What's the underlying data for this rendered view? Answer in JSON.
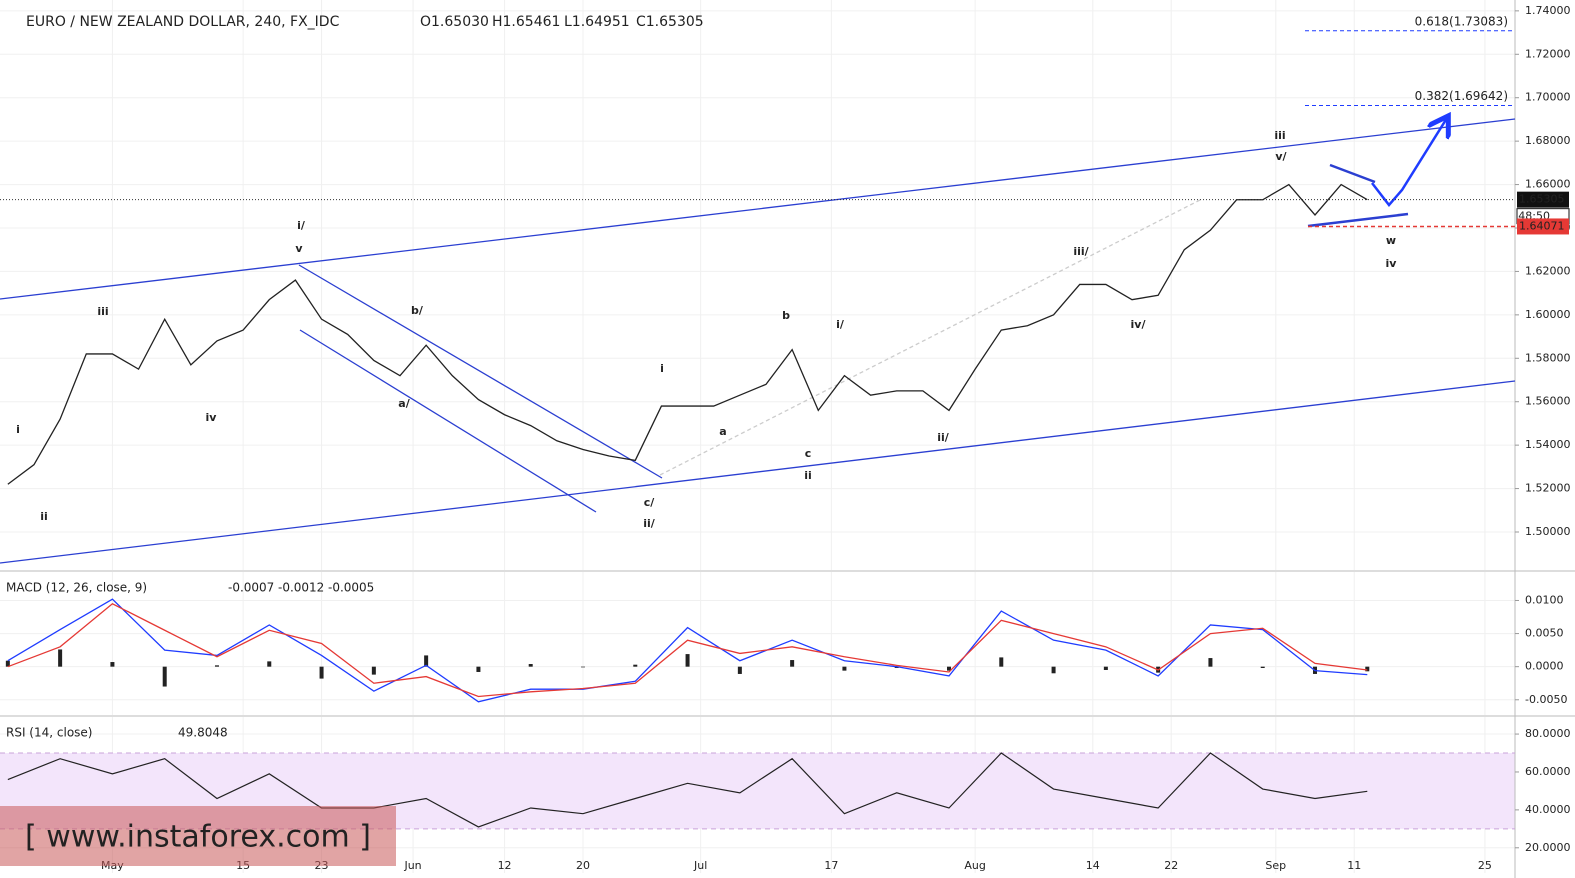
{
  "chart_data": [
    {
      "type": "line",
      "title": "EURO / NEW ZEALAND DOLLAR, 240, FX_IDC",
      "header_values": [
        "O1.65030",
        "H1.65461",
        "L1.64951",
        "C1.65305"
      ],
      "x": [
        -8,
        -6,
        -4,
        -2,
        0,
        2,
        4,
        6,
        8,
        10,
        12,
        14,
        16,
        18,
        20,
        22,
        24,
        26,
        28,
        30,
        32,
        34,
        36,
        38,
        40,
        42,
        44,
        46,
        48,
        50,
        52,
        54,
        56,
        58,
        60,
        62,
        64,
        66,
        68,
        70,
        72,
        74,
        76,
        78,
        80,
        82,
        84,
        86,
        88,
        90,
        92,
        94,
        96
      ],
      "values": [
        1.522,
        1.531,
        1.552,
        1.582,
        1.582,
        1.575,
        1.598,
        1.577,
        1.588,
        1.593,
        1.607,
        1.616,
        1.598,
        1.591,
        1.579,
        1.572,
        1.586,
        1.572,
        1.561,
        1.554,
        1.549,
        1.542,
        1.538,
        1.535,
        1.533,
        1.558,
        1.558,
        1.558,
        1.563,
        1.568,
        1.584,
        1.556,
        1.572,
        1.563,
        1.565,
        1.565,
        1.556,
        1.575,
        1.593,
        1.595,
        1.6,
        1.614,
        1.614,
        1.607,
        1.609,
        1.63,
        1.639,
        1.653,
        1.653,
        1.66,
        1.646,
        1.66,
        1.65305
      ],
      "color": "#222",
      "xlim": [
        -8.6,
        107.3
      ],
      "ylim": [
        1.4825,
        1.745
      ],
      "yticks": [
        {
          "value": 1.5,
          "label": "1.50000"
        },
        {
          "value": 1.52,
          "label": "1.52000"
        },
        {
          "value": 1.54,
          "label": "1.54000"
        },
        {
          "value": 1.56,
          "label": "1.56000"
        },
        {
          "value": 1.58,
          "label": "1.58000"
        },
        {
          "value": 1.6,
          "label": "1.60000"
        },
        {
          "value": 1.62,
          "label": "1.62000"
        },
        {
          "value": 1.64,
          "label": "1.64000"
        },
        {
          "value": 1.66,
          "label": "1.66000"
        },
        {
          "value": 1.68,
          "label": "1.68000"
        },
        {
          "value": 1.7,
          "label": "1.70000"
        },
        {
          "value": 1.72,
          "label": "1.72000"
        },
        {
          "value": 1.74,
          "label": "1.74000"
        }
      ],
      "fib_levels": [
        {
          "value": 1.73083,
          "label": "0.618(1.73083)"
        },
        {
          "value": 1.69642,
          "label": "0.382(1.69642)"
        }
      ],
      "last_price": {
        "value": 1.65305,
        "label": "1.65305"
      },
      "countdown": "48:50",
      "stop_level": {
        "value": 1.64071,
        "label": "1.64071"
      },
      "annotations": [
        {
          "text": "i",
          "color": "#d32f2f"
        },
        {
          "text": "ii",
          "color": "#d32f2f"
        },
        {
          "text": "iii",
          "color": "#d32f2f"
        },
        {
          "text": "iv",
          "color": "#d32f2f"
        },
        {
          "text": "v",
          "color": "#d32f2f"
        },
        {
          "text": "i",
          "color": "#d32f2f"
        },
        {
          "text": "a",
          "color": "#d32f2f"
        },
        {
          "text": "b",
          "color": "#d32f2f"
        },
        {
          "text": "c",
          "color": "#d32f2f"
        },
        {
          "text": "ii",
          "color": "#d32f2f"
        },
        {
          "text": "i/",
          "color": "#d32f2f"
        },
        {
          "text": "ii/",
          "color": "#d32f2f"
        },
        {
          "text": "iii/",
          "color": "#d32f2f"
        },
        {
          "text": "iv/",
          "color": "#d32f2f"
        },
        {
          "text": "v/",
          "color": "#d32f2f"
        },
        {
          "text": "iii",
          "color": "#d32f2f"
        },
        {
          "text": "w",
          "color": "#d32f2f"
        },
        {
          "text": "iv",
          "color": "#d32f2f"
        },
        {
          "text": "i/",
          "color": "#222"
        },
        {
          "text": "b/",
          "color": "#222"
        },
        {
          "text": "a/",
          "color": "#222"
        },
        {
          "text": "c/",
          "color": "#222"
        },
        {
          "text": "ii/",
          "color": "#222"
        }
      ],
      "watermark": "[ www.instaforex.com ]"
    },
    {
      "type": "macd",
      "title": "MACD (12, 26, close, 9)",
      "header_values": [
        "-0.0007",
        "-0.0012",
        "-0.0005"
      ],
      "header_colors": [
        "#222",
        "#1f3cff",
        "#e53935"
      ],
      "x": [
        -8,
        -4,
        0,
        4,
        8,
        12,
        16,
        20,
        24,
        28,
        32,
        36,
        40,
        44,
        48,
        52,
        56,
        60,
        64,
        68,
        72,
        76,
        80,
        84,
        88,
        92,
        96
      ],
      "histogram": {
        "color": "#222",
        "values": [
          0.0009,
          0.0026,
          0.0007,
          -0.003,
          0.0002,
          0.0008,
          -0.0018,
          -0.0012,
          0.0017,
          -0.0008,
          0.0004,
          -0.0001,
          0.0003,
          0.0019,
          -0.0011,
          0.001,
          -0.0006,
          -0.0002,
          -0.0006,
          0.0014,
          -0.001,
          -0.0005,
          -0.0009,
          0.0013,
          -0.0002,
          -0.0011,
          -0.0007
        ]
      },
      "series": [
        {
          "color": "#1f3cff",
          "values": [
            0.0009,
            0.0056,
            0.0102,
            0.0025,
            0.0017,
            0.0063,
            0.0017,
            -0.0037,
            0.0002,
            -0.0053,
            -0.0034,
            -0.0034,
            -0.0022,
            0.0059,
            0.0009,
            0.004,
            0.0009,
            0,
            -0.0014,
            0.0084,
            0.004,
            0.0025,
            -0.0014,
            0.0063,
            0.0056,
            -0.0006,
            -0.0012
          ]
        },
        {
          "color": "#e53935",
          "values": [
            0,
            0.003,
            0.0095,
            0.0055,
            0.0015,
            0.0055,
            0.0035,
            -0.0025,
            -0.0015,
            -0.0045,
            -0.0038,
            -0.0033,
            -0.0025,
            0.004,
            0.002,
            0.003,
            0.0015,
            0.0002,
            -0.0008,
            0.007,
            0.005,
            0.003,
            -0.0005,
            0.005,
            0.0058,
            0.0005,
            -0.0005
          ]
        }
      ],
      "xlim": [
        -8.6,
        107.3
      ],
      "ylim": [
        -0.0073,
        0.0143
      ],
      "yticks": [
        {
          "value": -0.005,
          "label": "-0.0050"
        },
        {
          "value": 0,
          "label": "0.0000"
        },
        {
          "value": 0.005,
          "label": "0.0050"
        },
        {
          "value": 0.01,
          "label": "0.0100"
        }
      ]
    },
    {
      "type": "rsi",
      "title": "RSI (14, close)",
      "header_values": [
        "49.8048"
      ],
      "x": [
        -8,
        -4,
        0,
        4,
        8,
        12,
        16,
        20,
        24,
        28,
        32,
        36,
        40,
        44,
        48,
        52,
        56,
        60,
        64,
        68,
        72,
        76,
        80,
        84,
        88,
        92,
        96
      ],
      "values": [
        56,
        67,
        59,
        67,
        46,
        59,
        41,
        41,
        46,
        31,
        41,
        38,
        46,
        54,
        49,
        67,
        38,
        49,
        41,
        70,
        51,
        46,
        41,
        70,
        51,
        46,
        49.8048
      ],
      "color": "#222",
      "band": [
        30,
        70
      ],
      "band_color": "#f3e5fb",
      "xlim": [
        -8.6,
        107.3
      ],
      "ylim": [
        6.7,
        89
      ],
      "yticks": [
        {
          "value": 20,
          "label": "20.0000"
        },
        {
          "value": 40,
          "label": "40.0000"
        },
        {
          "value": 60,
          "label": "60.0000"
        },
        {
          "value": 80,
          "label": "80.0000"
        }
      ],
      "xticks": [
        {
          "value": 0,
          "label": "May"
        },
        {
          "value": 10,
          "label": "15"
        },
        {
          "value": 16,
          "label": "23"
        },
        {
          "value": 23,
          "label": "Jun"
        },
        {
          "value": 30,
          "label": "12"
        },
        {
          "value": 36,
          "label": "20"
        },
        {
          "value": 45,
          "label": "Jul"
        },
        {
          "value": 55,
          "label": "17"
        },
        {
          "value": 66,
          "label": "Aug"
        },
        {
          "value": 75,
          "label": "14"
        },
        {
          "value": 81,
          "label": "22"
        },
        {
          "value": 89,
          "label": "Sep"
        },
        {
          "value": 95,
          "label": "11"
        },
        {
          "value": 105,
          "label": "25"
        }
      ]
    }
  ]
}
